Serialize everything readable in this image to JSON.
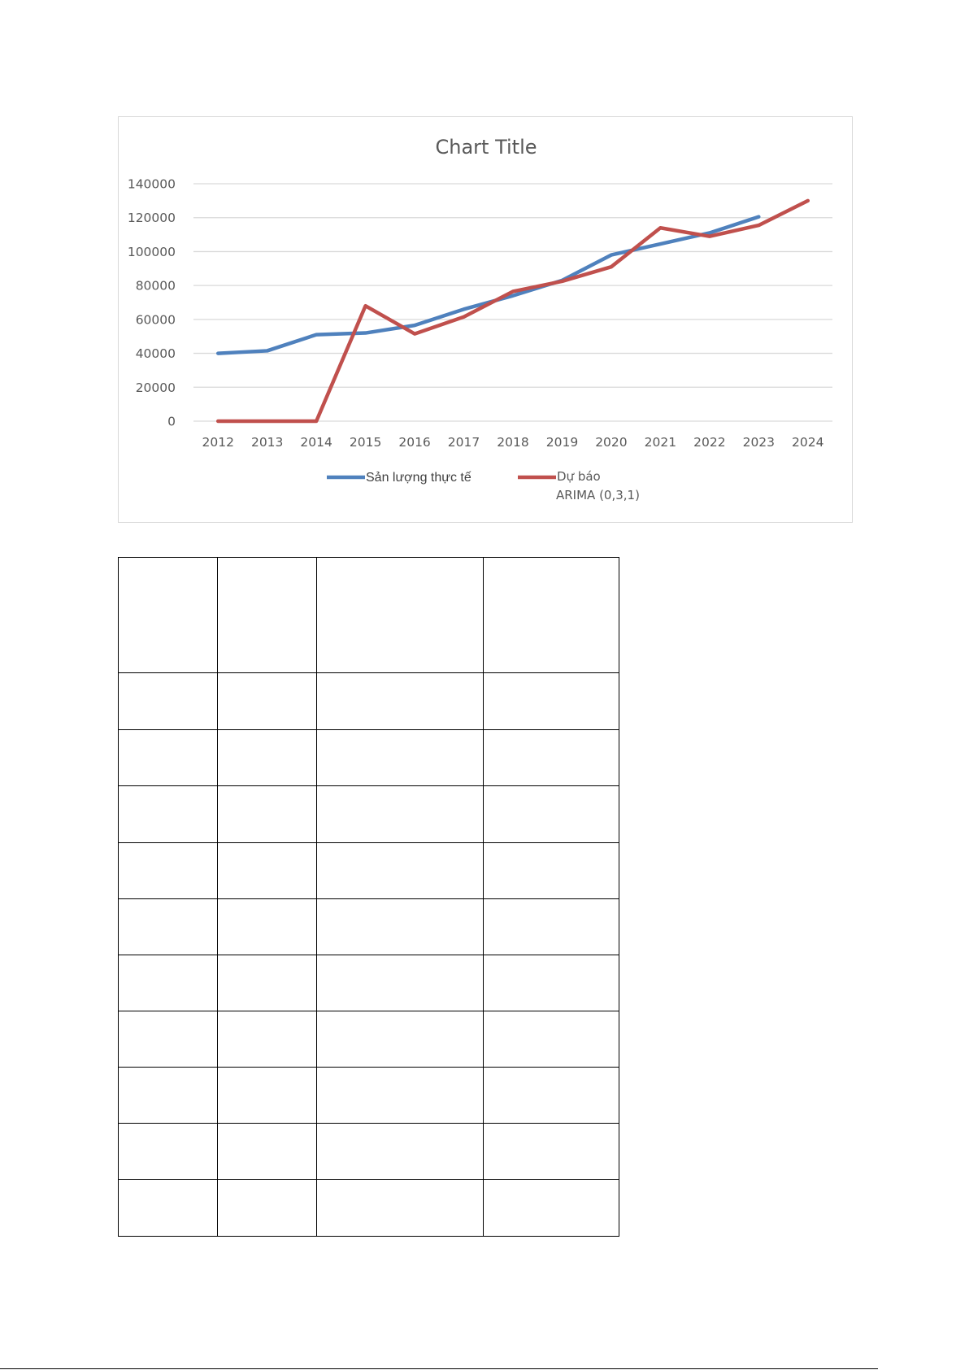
{
  "chart_data": {
    "type": "line",
    "title": "Chart Title",
    "xlabel": "",
    "ylabel": "",
    "x": [
      "2012",
      "2013",
      "2014",
      "2015",
      "2016",
      "2017",
      "2018",
      "2019",
      "2020",
      "2021",
      "2022",
      "2023",
      "2024"
    ],
    "ylim": [
      0,
      140000
    ],
    "yticks": [
      0,
      20000,
      40000,
      60000,
      80000,
      100000,
      120000,
      140000
    ],
    "grid": true,
    "legend_position": "bottom",
    "series": [
      {
        "name": "Sản lượng thực tế",
        "color": "#4F81BD",
        "values": [
          40000,
          41500,
          51000,
          52000,
          56500,
          66000,
          74000,
          83000,
          98000,
          104500,
          111000,
          120500,
          null
        ]
      },
      {
        "name": "Dự báo ARIMA (0,3,1)",
        "name_lines": [
          "Dự báo",
          "ARIMA (0,3,1)"
        ],
        "color": "#C0504D",
        "values": [
          0,
          0,
          0,
          68000,
          51500,
          61500,
          76500,
          82500,
          91000,
          114000,
          109000,
          115500,
          130000
        ]
      }
    ]
  },
  "table": {
    "columns": 4,
    "rows": 11
  }
}
